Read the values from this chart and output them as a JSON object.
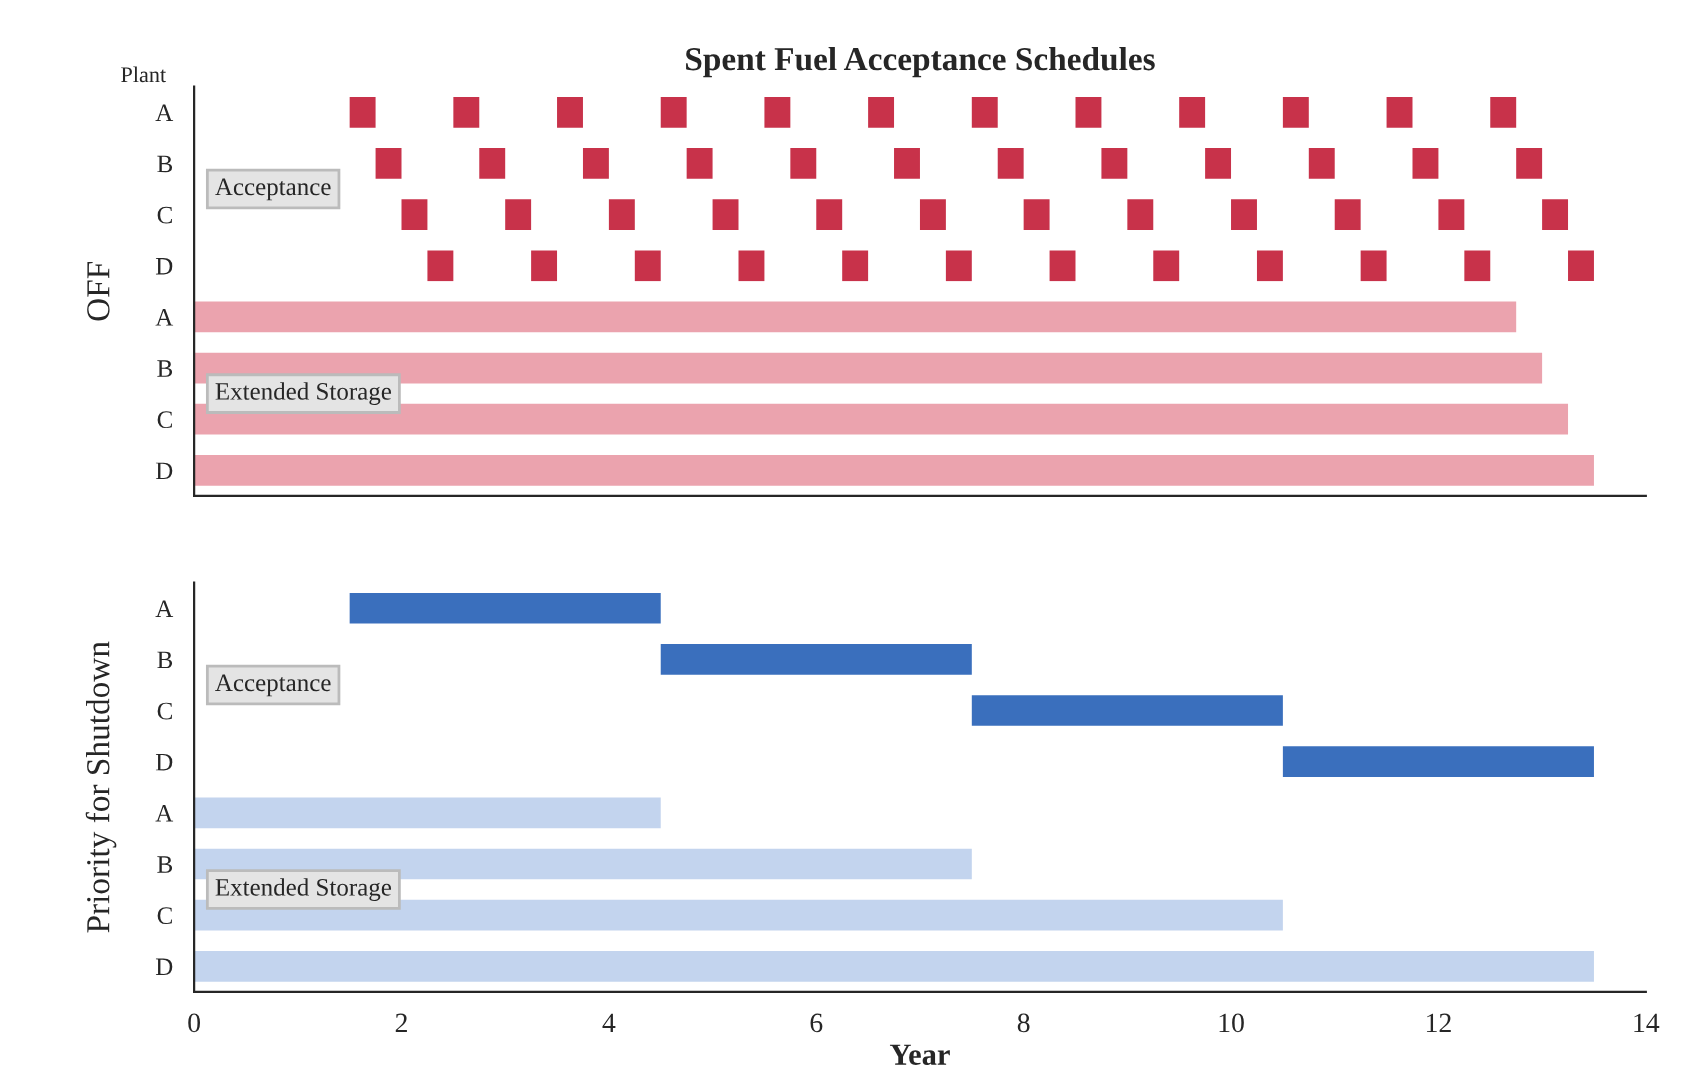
{
  "chart_data": [
    {
      "type": "bar",
      "orientation": "horizontal",
      "title": "Spent Fuel Acceptance Schedules",
      "ylabel": "OFF",
      "annotations": [
        "Plant",
        "Acceptance",
        "Extended Storage"
      ],
      "categories": [
        "A",
        "B",
        "C",
        "D",
        "A",
        "B",
        "C",
        "D"
      ],
      "xlim": [
        0,
        14
      ],
      "xticks": [
        0,
        2,
        4,
        6,
        8,
        10,
        12,
        14
      ],
      "tick_labels": "y",
      "series": [
        {
          "color": "#c8324a",
          "values": [
            0.25,
            0.25,
            0.25,
            0.25,
            null,
            null,
            null,
            null
          ],
          "base": [
            1.5,
            1.75,
            2.0,
            2.25,
            null,
            null,
            null,
            null
          ]
        },
        {
          "color": "#c8324a",
          "values": [
            0.25,
            0.25,
            0.25,
            0.25,
            null,
            null,
            null,
            null
          ],
          "base": [
            2.5,
            2.75,
            3.0,
            3.25,
            null,
            null,
            null,
            null
          ]
        },
        {
          "color": "#c8324a",
          "values": [
            0.25,
            0.25,
            0.25,
            0.25,
            null,
            null,
            null,
            null
          ],
          "base": [
            3.5,
            3.75,
            4.0,
            4.25,
            null,
            null,
            null,
            null
          ]
        },
        {
          "color": "#c8324a",
          "values": [
            0.25,
            0.25,
            0.25,
            0.25,
            null,
            null,
            null,
            null
          ],
          "base": [
            4.5,
            4.75,
            5.0,
            5.25,
            null,
            null,
            null,
            null
          ]
        },
        {
          "color": "#c8324a",
          "values": [
            0.25,
            0.25,
            0.25,
            0.25,
            null,
            null,
            null,
            null
          ],
          "base": [
            5.5,
            5.75,
            6.0,
            6.25,
            null,
            null,
            null,
            null
          ]
        },
        {
          "color": "#c8324a",
          "values": [
            0.25,
            0.25,
            0.25,
            0.25,
            null,
            null,
            null,
            null
          ],
          "base": [
            6.5,
            6.75,
            7.0,
            7.25,
            null,
            null,
            null,
            null
          ]
        },
        {
          "color": "#c8324a",
          "values": [
            0.25,
            0.25,
            0.25,
            0.25,
            null,
            null,
            null,
            null
          ],
          "base": [
            7.5,
            7.75,
            8.0,
            8.25,
            null,
            null,
            null,
            null
          ]
        },
        {
          "color": "#c8324a",
          "values": [
            0.25,
            0.25,
            0.25,
            0.25,
            null,
            null,
            null,
            null
          ],
          "base": [
            8.5,
            8.75,
            9.0,
            9.25,
            null,
            null,
            null,
            null
          ]
        },
        {
          "color": "#c8324a",
          "values": [
            0.25,
            0.25,
            0.25,
            0.25,
            null,
            null,
            null,
            null
          ],
          "base": [
            9.5,
            9.75,
            10.0,
            10.25,
            null,
            null,
            null,
            null
          ]
        },
        {
          "color": "#c8324a",
          "values": [
            0.25,
            0.25,
            0.25,
            0.25,
            null,
            null,
            null,
            null
          ],
          "base": [
            10.5,
            10.75,
            11.0,
            11.25,
            null,
            null,
            null,
            null
          ]
        },
        {
          "color": "#c8324a",
          "values": [
            0.25,
            0.25,
            0.25,
            0.25,
            null,
            null,
            null,
            null
          ],
          "base": [
            11.5,
            11.75,
            12.0,
            12.25,
            null,
            null,
            null,
            null
          ]
        },
        {
          "color": "#c8324a",
          "values": [
            0.25,
            0.25,
            0.25,
            0.25,
            null,
            null,
            null,
            null
          ],
          "base": [
            12.5,
            12.75,
            13.0,
            13.25,
            null,
            null,
            null,
            null
          ]
        },
        {
          "color": "#eba3ae",
          "values": [
            null,
            null,
            null,
            null,
            12.75,
            13.0,
            13.25,
            13.5
          ],
          "base": [
            null,
            null,
            null,
            null,
            0,
            0,
            0,
            0
          ]
        }
      ]
    },
    {
      "type": "bar",
      "orientation": "horizontal",
      "ylabel": "Priority for Shutdown",
      "xlabel": "Year",
      "annotations": [
        "Acceptance",
        "Extended Storage"
      ],
      "categories": [
        "A",
        "B",
        "C",
        "D",
        "A",
        "B",
        "C",
        "D"
      ],
      "xlim": [
        0,
        14
      ],
      "xticks": [
        0,
        2,
        4,
        6,
        8,
        10,
        12,
        14
      ],
      "series": [
        {
          "color": "#3a6fbd",
          "values": [
            3.0,
            3.0,
            3.0,
            3.0,
            null,
            null,
            null,
            null
          ],
          "base": [
            1.5,
            4.5,
            7.5,
            10.5,
            null,
            null,
            null,
            null
          ]
        },
        {
          "color": "#c3d4ee",
          "values": [
            null,
            null,
            null,
            null,
            4.5,
            7.5,
            10.5,
            13.5
          ],
          "base": [
            null,
            null,
            null,
            null,
            0,
            0,
            0,
            0
          ]
        }
      ]
    }
  ]
}
